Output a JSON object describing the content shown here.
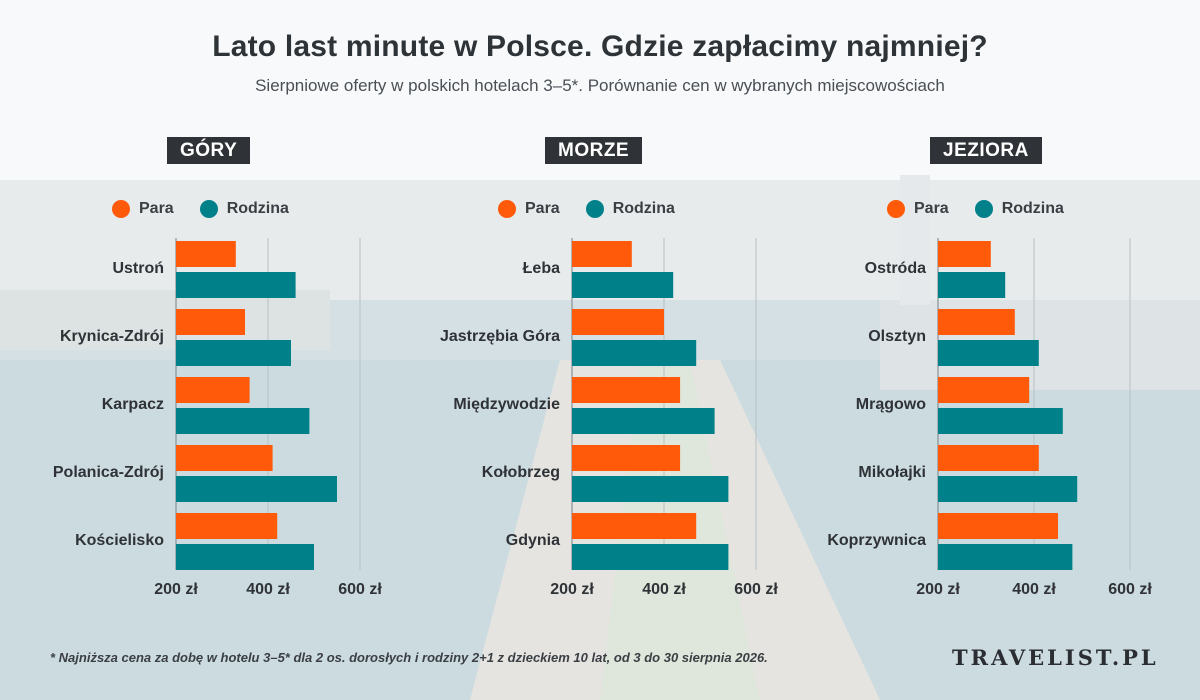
{
  "title": "Lato last minute w Polsce. Gdzie zapłacimy najmniej?",
  "subtitle": "Sierpniowe oferty w polskich hotelach 3–5*. Porównanie cen w wybranych miejscowościach",
  "legend": {
    "para": "Para",
    "rodzina": "Rodzina"
  },
  "colors": {
    "para": "#ff5a0a",
    "rodzina": "#00818a"
  },
  "footnote": "* Najniższa cena za dobę w hotelu 3–5* dla 2 os. dorosłych i rodziny 2+1 z dzieckiem 10 lat, od 3 do 30 sierpnia 2026.",
  "logo": "TRAVELIST.PL",
  "chart_data": [
    {
      "type": "bar",
      "orientation": "horizontal",
      "title": "GÓRY",
      "categories": [
        "Ustroń",
        "Krynica-Zdrój",
        "Karpacz",
        "Polanica-Zdrój",
        "Kościelisko"
      ],
      "series": [
        {
          "name": "Para",
          "values": [
            330,
            350,
            360,
            410,
            420
          ]
        },
        {
          "name": "Rodzina",
          "values": [
            460,
            450,
            490,
            550,
            500
          ]
        }
      ],
      "xlim": [
        200,
        600
      ],
      "ticks": [
        "200 zł",
        "400 zł",
        "600 zł"
      ],
      "grid": true
    },
    {
      "type": "bar",
      "orientation": "horizontal",
      "title": "MORZE",
      "categories": [
        "Łeba",
        "Jastrzębia Góra",
        "Międzywodzie",
        "Kołobrzeg",
        "Gdynia"
      ],
      "series": [
        {
          "name": "Para",
          "values": [
            330,
            400,
            435,
            435,
            470
          ]
        },
        {
          "name": "Rodzina",
          "values": [
            420,
            470,
            510,
            540,
            540
          ]
        }
      ],
      "xlim": [
        200,
        600
      ],
      "ticks": [
        "200 zł",
        "400 zł",
        "600 zł"
      ],
      "grid": true
    },
    {
      "type": "bar",
      "orientation": "horizontal",
      "title": "JEZIORA",
      "categories": [
        "Ostróda",
        "Olsztyn",
        "Mrągowo",
        "Mikołajki",
        "Koprzywnica"
      ],
      "series": [
        {
          "name": "Para",
          "values": [
            310,
            360,
            390,
            410,
            450
          ]
        },
        {
          "name": "Rodzina",
          "values": [
            340,
            410,
            460,
            490,
            480
          ]
        }
      ],
      "xlim": [
        200,
        600
      ],
      "ticks": [
        "200 zł",
        "400 zł",
        "600 zł"
      ],
      "grid": true
    }
  ]
}
